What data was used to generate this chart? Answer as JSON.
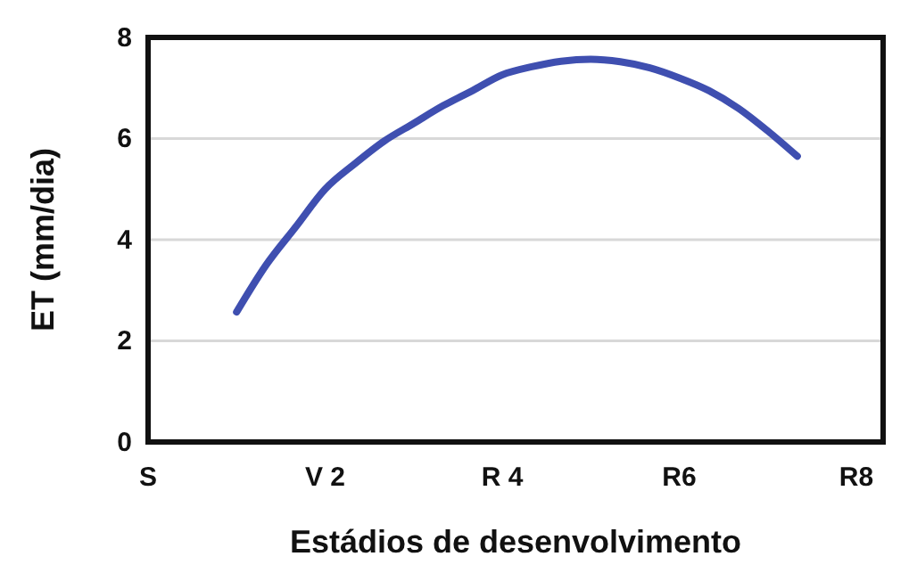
{
  "chart_data": {
    "type": "line",
    "xlabel": "Estádios de desenvolvimento",
    "ylabel": "ET (mm/dia)",
    "categories": [
      "S",
      null,
      null,
      null,
      null,
      null,
      "V 2",
      null,
      null,
      null,
      null,
      null,
      "R 4",
      null,
      null,
      null,
      null,
      null,
      "R6",
      null,
      null,
      null,
      null,
      null,
      "R8"
    ],
    "ylim": [
      0,
      8
    ],
    "yticks": [
      0,
      2,
      4,
      6,
      8
    ],
    "grid": "y",
    "series": [
      {
        "color": "#3f4fb0",
        "values": [
          null,
          null,
          null,
          2.57,
          3.5,
          4.25,
          5.0,
          5.5,
          5.95,
          6.3,
          6.65,
          6.95,
          7.26,
          7.42,
          7.53,
          7.57,
          7.52,
          7.4,
          7.2,
          6.95,
          6.6,
          6.15,
          5.65,
          null,
          null
        ]
      }
    ]
  }
}
